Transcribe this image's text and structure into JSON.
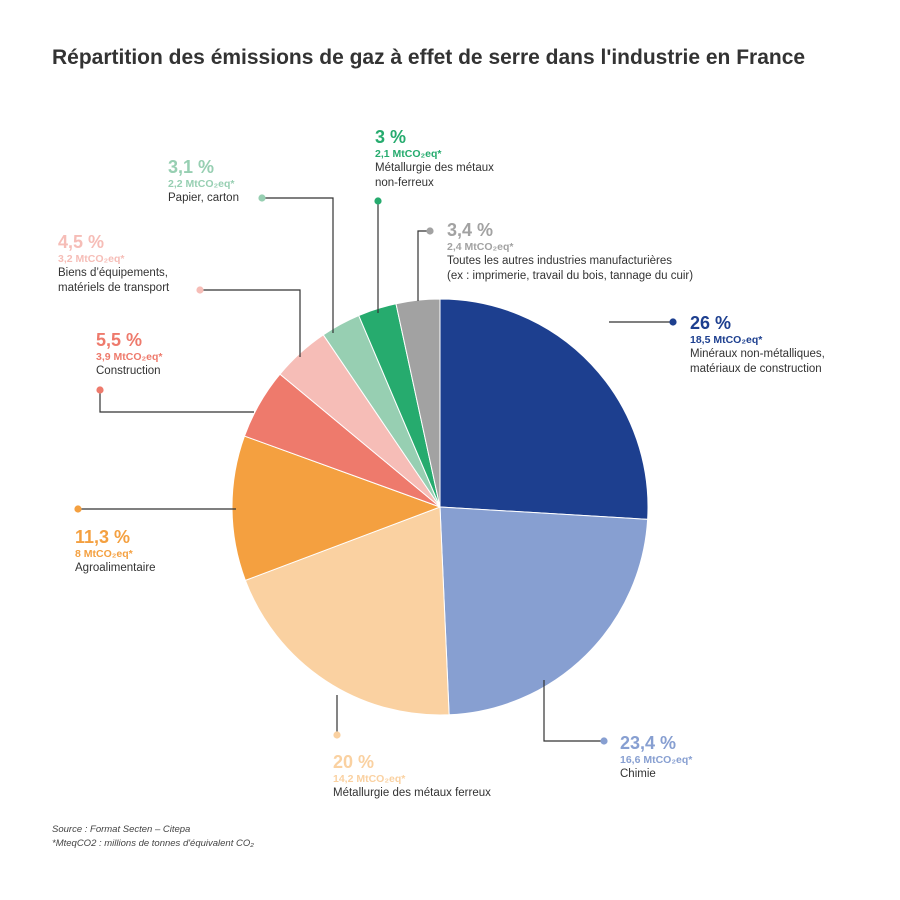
{
  "title": "Répartition des émissions de gaz à effet de serre dans l'industrie en France",
  "chart_data": {
    "type": "pie",
    "title": "Répartition des émissions de gaz à effet de serre dans l'industrie en France",
    "slices": [
      {
        "label": "Minéraux non-métalliques,\nmatériaux de construction",
        "percent": 26,
        "percent_text": "26 %",
        "value_text": "18,5 MtCO₂eq*",
        "value": 18.5,
        "color": "#1d3f8f"
      },
      {
        "label": "Chimie",
        "percent": 23.4,
        "percent_text": "23,4 %",
        "value_text": "16,6 MtCO₂eq*",
        "value": 16.6,
        "color": "#879fd1"
      },
      {
        "label": "Métallurgie des métaux ferreux",
        "percent": 20,
        "percent_text": "20 %",
        "value_text": "14,2 MtCO₂eq*",
        "value": 14.2,
        "color": "#fad1a1"
      },
      {
        "label": "Agroalimentaire",
        "percent": 11.3,
        "percent_text": "11,3 %",
        "value_text": "8 MtCO₂eq*",
        "value": 8,
        "color": "#f4a040"
      },
      {
        "label": "Construction",
        "percent": 5.5,
        "percent_text": "5,5 %",
        "value_text": "3,9 MtCO₂eq*",
        "value": 3.9,
        "color": "#ee7a6c"
      },
      {
        "label": "Biens d’équipements,\nmatériels de transport",
        "percent": 4.5,
        "percent_text": "4,5 %",
        "value_text": "3,2 MtCO₂eq*",
        "value": 3.2,
        "color": "#f6bdb7"
      },
      {
        "label": "Papier, carton",
        "percent": 3.1,
        "percent_text": "3,1 %",
        "value_text": "2,2 MtCO₂eq*",
        "value": 2.2,
        "color": "#97cfb2"
      },
      {
        "label": "Métallurgie des métaux\nnon-ferreux",
        "percent": 3,
        "percent_text": "3 %",
        "value_text": "2,1 MtCO₂eq*",
        "value": 2.1,
        "color": "#26ab6e"
      },
      {
        "label": "Toutes les autres industries manufacturières\n(ex : imprimerie, travail du bois, tannage du cuir)",
        "percent": 3.4,
        "percent_text": "3,4 %",
        "value_text": "2,4 MtCO₂eq*",
        "value": 2.4,
        "color": "#a2a2a2"
      }
    ]
  },
  "footer": {
    "source": "Source : Format Secten – Citepa",
    "note": "*MteqCO2 :  millions de tonnes d'équivalent CO₂"
  }
}
